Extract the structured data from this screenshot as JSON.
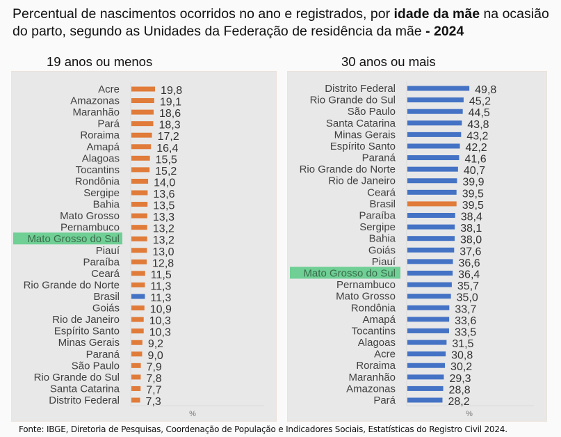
{
  "title": {
    "part1": "Percentual de nascimentos ocorridos no ano e registrados, por ",
    "bold1": "idade da mãe",
    "part2": " na ocasião do parto, segundo as Unidades da Federação de residência da mãe ",
    "bold2": "- 2024"
  },
  "source": "Fonte: IBGE, Diretoria de Pesquisas, Coordenação de População e Indicadores Sociais, Estatísticas do Registro Civil 2024.",
  "colors": {
    "states_left": "#E07B39",
    "brasil_left": "#4472C4",
    "states_right": "#4472C4",
    "brasil_right": "#E07B39",
    "highlight": "#6FCF94",
    "highlight_text": "#3a6b4c",
    "label_text": "#404040"
  },
  "chart_data": [
    {
      "type": "bar",
      "orientation": "horizontal",
      "title": "19 anos ou menos",
      "xlabel": "%",
      "highlight": "Mato Grosso do Sul",
      "reference": "Brasil",
      "categories": [
        "Acre",
        "Amazonas",
        "Maranhão",
        "Pará",
        "Roraima",
        "Amapá",
        "Alagoas",
        "Tocantins",
        "Rondônia",
        "Sergipe",
        "Bahia",
        "Mato Grosso",
        "Pernambuco",
        "Mato Grosso do Sul",
        "Piauí",
        "Paraíba",
        "Ceará",
        "Rio Grande do Norte",
        "Brasil",
        "Goiás",
        "Rio de Janeiro",
        "Espírito Santo",
        "Minas Gerais",
        "Paraná",
        "São Paulo",
        "Rio Grande do Sul",
        "Santa Catarina",
        "Distrito Federal"
      ],
      "values": [
        19.8,
        19.1,
        18.6,
        18.3,
        17.2,
        16.4,
        15.5,
        15.2,
        14.0,
        13.6,
        13.5,
        13.3,
        13.2,
        13.2,
        13.0,
        12.8,
        11.5,
        11.3,
        11.3,
        10.9,
        10.3,
        10.3,
        9.2,
        9.0,
        7.9,
        7.8,
        7.7,
        7.3
      ],
      "value_labels": [
        "19,8",
        "19,1",
        "18,6",
        "18,3",
        "17,2",
        "16,4",
        "15,5",
        "15,2",
        "14,0",
        "13,6",
        "13,5",
        "13,3",
        "13,2",
        "13,2",
        "13,0",
        "12,8",
        "11,5",
        "11,3",
        "11,3",
        "10,9",
        "10,3",
        "10,3",
        "9,2",
        "9,0",
        "7,9",
        "7,8",
        "7,7",
        "7,3"
      ],
      "grid": false
    },
    {
      "type": "bar",
      "orientation": "horizontal",
      "title": "30 anos ou mais",
      "xlabel": "%",
      "highlight": "Mato Grosso do Sul",
      "reference": "Brasil",
      "categories": [
        "Distrito Federal",
        "Rio Grande do Sul",
        "São Paulo",
        "Santa Catarina",
        "Minas Gerais",
        "Espírito Santo",
        "Paraná",
        "Rio Grande do Norte",
        "Rio de Janeiro",
        "Ceará",
        "Brasil",
        "Paraíba",
        "Sergipe",
        "Bahia",
        "Goiás",
        "Piauí",
        "Mato Grosso do Sul",
        "Pernambuco",
        "Mato Grosso",
        "Rondônia",
        "Amapá",
        "Tocantins",
        "Alagoas",
        "Acre",
        "Roraima",
        "Maranhão",
        "Amazonas",
        "Pará"
      ],
      "values": [
        49.8,
        45.2,
        44.5,
        43.8,
        43.2,
        42.2,
        41.6,
        40.7,
        39.9,
        39.5,
        39.5,
        38.4,
        38.1,
        38.0,
        37.6,
        36.6,
        36.4,
        35.7,
        35.0,
        33.7,
        33.6,
        33.5,
        31.5,
        30.8,
        30.2,
        29.3,
        28.8,
        28.2
      ],
      "value_labels": [
        "49,8",
        "45,2",
        "44,5",
        "43,8",
        "43,2",
        "42,2",
        "41,6",
        "40,7",
        "39,9",
        "39,5",
        "39,5",
        "38,4",
        "38,1",
        "38,0",
        "37,6",
        "36,6",
        "36,4",
        "35,7",
        "35,0",
        "33,7",
        "33,6",
        "33,5",
        "31,5",
        "30,8",
        "30,2",
        "29,3",
        "28,8",
        "28,2"
      ],
      "grid": false
    }
  ]
}
